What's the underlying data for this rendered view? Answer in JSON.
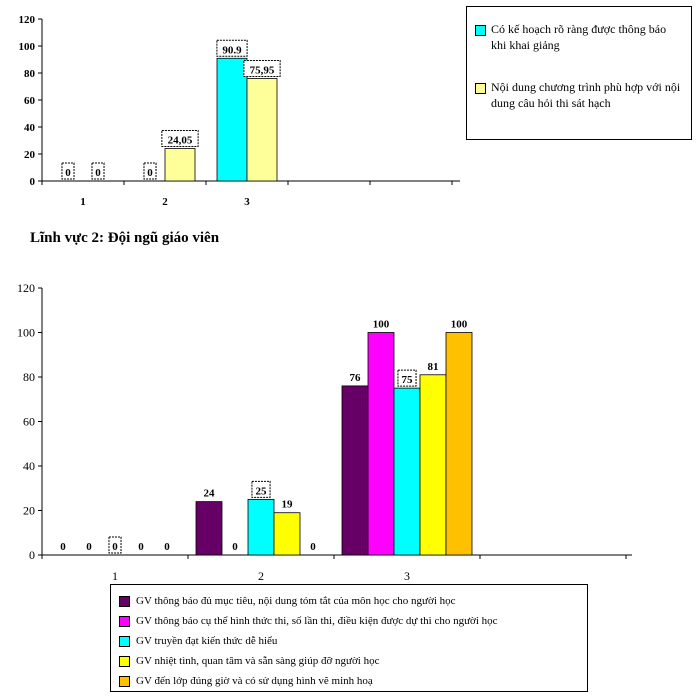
{
  "section_title": "Lĩnh vực 2: Đội ngũ giáo viên",
  "chart_data": [
    {
      "type": "bar",
      "categories": [
        "1",
        "2",
        "3"
      ],
      "ylim": [
        0,
        120
      ],
      "yticks": [
        "0",
        "20",
        "40",
        "60",
        "80",
        "100",
        "120"
      ],
      "legend_position": "right",
      "series": [
        {
          "name": "Có kế hoạch rõ ràng được thông báo khi khai giảng",
          "color": "#00ffff",
          "values": [
            0,
            0,
            90.9
          ],
          "labels": [
            "0",
            "0",
            "90.9"
          ]
        },
        {
          "name": "Nội dung chương trình phù hợp với nội dung câu hỏi thi sát hạch",
          "color": "#ffff99",
          "values": [
            0,
            24.05,
            75.95
          ],
          "labels": [
            "0",
            "24,05",
            "75,95"
          ]
        }
      ]
    },
    {
      "type": "bar",
      "categories": [
        "1",
        "2",
        "3"
      ],
      "ylim": [
        0,
        120
      ],
      "yticks": [
        "0",
        "20",
        "40",
        "60",
        "80",
        "100",
        "120"
      ],
      "legend_position": "bottom",
      "series": [
        {
          "name": "GV thông báo đủ mục tiêu, nội dung tóm tắt của môn học cho người học",
          "color": "#660066",
          "values": [
            0,
            24,
            76
          ],
          "labels": [
            "0",
            "24",
            "76"
          ]
        },
        {
          "name": "GV thông báo cụ thể hình thức thi, số lần thi, điều kiện được dự thi cho người học",
          "color": "#ff00ff",
          "values": [
            0,
            0,
            100
          ],
          "labels": [
            "0",
            "0",
            "100"
          ]
        },
        {
          "name": "GV truyền đạt kiến thức dễ hiểu",
          "color": "#00ffff",
          "values": [
            0,
            25,
            75
          ],
          "labels": [
            "0",
            "25",
            "75"
          ]
        },
        {
          "name": "GV nhiệt tình, quan tâm và sẵn sàng giúp đỡ người học",
          "color": "#ffff00",
          "values": [
            0,
            19,
            81
          ],
          "labels": [
            "0",
            "19",
            "81"
          ]
        },
        {
          "name": "GV đến lớp đúng giờ và có sử dụng hình vẽ minh hoạ",
          "color": "#ffc000",
          "values": [
            0,
            0,
            100
          ],
          "labels": [
            "0",
            "0",
            "100"
          ]
        }
      ]
    }
  ]
}
